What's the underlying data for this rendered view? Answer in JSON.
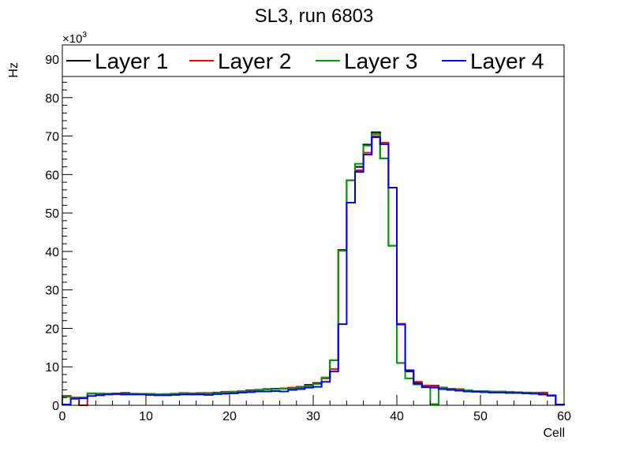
{
  "chart_data": {
    "type": "line",
    "style": "step-histogram",
    "title": "SL3, run 6803",
    "xlabel": "Cell",
    "ylabel": "Hz",
    "y_multiplier_label": "×10",
    "y_multiplier_exp": "3",
    "xlim": [
      0,
      60
    ],
    "ylim": [
      0,
      93.7
    ],
    "x_ticks": [
      0,
      10,
      20,
      30,
      40,
      50,
      60
    ],
    "y_ticks": [
      0,
      10,
      20,
      30,
      40,
      50,
      60,
      70,
      80,
      90
    ],
    "grid": false,
    "legend_placement": "top (inside frame, single row)",
    "bin_width": 1,
    "series": [
      {
        "name": "Layer 1",
        "color": "#000000",
        "values": [
          2.4,
          2.0,
          2.0,
          3.1,
          3.0,
          3.0,
          3.0,
          3.2,
          3.0,
          2.9,
          2.9,
          2.8,
          2.9,
          3.0,
          3.0,
          3.1,
          3.1,
          3.0,
          3.3,
          3.4,
          3.5,
          3.7,
          3.9,
          4.0,
          4.2,
          4.3,
          4.3,
          4.5,
          4.8,
          5.3,
          5.8,
          7.2,
          11.7,
          40.4,
          58.5,
          62.0,
          67.8,
          71.0,
          64.2,
          41.5,
          11.0,
          8.8,
          5.8,
          5.1,
          5.1,
          4.6,
          4.2,
          4.0,
          3.8,
          3.6,
          3.6,
          3.5,
          3.4,
          3.3,
          3.3,
          3.2,
          3.1,
          3.0,
          2.6,
          0.2
        ]
      },
      {
        "name": "Layer 2",
        "color": "#ff0000",
        "values": [
          2.4,
          2.0,
          0.0,
          3.0,
          3.0,
          3.0,
          3.1,
          3.0,
          3.0,
          2.9,
          2.9,
          2.8,
          2.9,
          3.0,
          3.2,
          3.1,
          3.2,
          3.2,
          3.2,
          3.5,
          3.5,
          3.6,
          3.8,
          3.9,
          4.1,
          4.2,
          4.4,
          4.6,
          4.7,
          5.1,
          5.6,
          7.0,
          9.4,
          40.2,
          58.5,
          61.1,
          65.7,
          70.0,
          68.3,
          41.5,
          21.2,
          9.1,
          6.1,
          5.1,
          5.0,
          4.5,
          4.3,
          4.2,
          3.8,
          3.7,
          3.6,
          3.6,
          3.6,
          3.5,
          3.3,
          3.3,
          3.3,
          3.3,
          2.5,
          0.2
        ]
      },
      {
        "name": "Layer 3",
        "color": "#00a000",
        "values": [
          2.2,
          1.9,
          2.0,
          3.1,
          3.1,
          3.0,
          3.0,
          3.0,
          3.0,
          3.0,
          3.0,
          2.9,
          2.9,
          3.0,
          3.1,
          3.0,
          3.0,
          3.0,
          3.2,
          3.3,
          3.5,
          3.7,
          3.7,
          3.9,
          4.1,
          4.2,
          4.3,
          4.3,
          4.6,
          5.0,
          5.5,
          7.2,
          11.7,
          40.2,
          58.5,
          62.8,
          67.5,
          70.5,
          64.2,
          41.5,
          11.0,
          7.0,
          5.4,
          4.7,
          0.3,
          4.5,
          4.2,
          4.0,
          3.9,
          3.7,
          3.7,
          3.6,
          3.5,
          3.4,
          3.4,
          3.3,
          3.2,
          2.9,
          2.6,
          0.2
        ]
      },
      {
        "name": "Layer 4",
        "color": "#0000ff",
        "values": [
          0.2,
          1.7,
          1.8,
          2.4,
          2.6,
          2.8,
          2.9,
          2.8,
          2.8,
          2.8,
          2.7,
          2.6,
          2.6,
          2.7,
          2.8,
          2.8,
          2.8,
          2.7,
          2.9,
          3.0,
          3.1,
          3.3,
          3.4,
          3.6,
          3.6,
          3.7,
          3.6,
          4.0,
          4.2,
          4.6,
          4.8,
          6.1,
          8.8,
          21.1,
          52.7,
          60.7,
          65.2,
          69.7,
          67.9,
          56.6,
          21.0,
          9.1,
          5.6,
          4.7,
          4.6,
          4.2,
          4.0,
          3.8,
          3.6,
          3.5,
          3.4,
          3.3,
          3.3,
          3.2,
          3.2,
          3.1,
          3.0,
          2.8,
          2.5,
          0.2
        ]
      }
    ]
  }
}
